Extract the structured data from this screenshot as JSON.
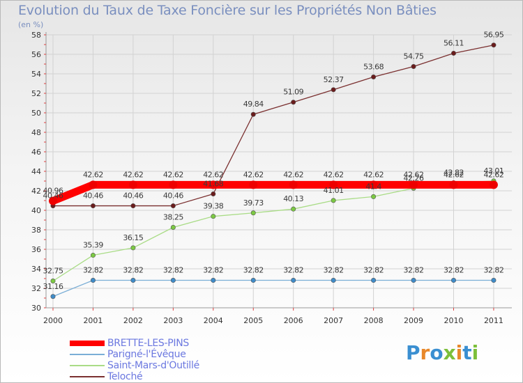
{
  "title": "Evolution du Taux de Taxe Foncière sur les Propriétés Non Bâties",
  "subtitle": "(en %)",
  "logo": {
    "text": "Proxiti",
    "colors": [
      "#3a8fd1",
      "#e8882a",
      "#3a8fd1",
      "#7cbf3a",
      "#e8882a",
      "#3a8fd1",
      "#7cbf3a"
    ]
  },
  "chart_data": {
    "type": "line",
    "title": "Evolution du Taux de Taxe Foncière sur les Propriétés Non Bâties",
    "ylabel": "(en %)",
    "xlabel": "",
    "x": [
      "2000",
      "2001",
      "2002",
      "2003",
      "2004",
      "2005",
      "2006",
      "2007",
      "2008",
      "2009",
      "2010",
      "2011"
    ],
    "ylim": [
      30,
      58
    ],
    "yticks": [
      "30",
      "32",
      "34",
      "36",
      "38",
      "40",
      "42",
      "44",
      "46",
      "48",
      "50",
      "52",
      "54",
      "56",
      "58"
    ],
    "grid": true,
    "legend_position": "bottom-left",
    "series": [
      {
        "name": "Teloché",
        "color": "#7a2f2f",
        "marker": "#6b1c1c",
        "values": [
          40.46,
          40.46,
          40.46,
          40.46,
          41.68,
          49.84,
          51.09,
          52.37,
          53.68,
          54.75,
          56.11,
          56.95
        ],
        "labels": [
          "40.46",
          "40.46",
          "40.46",
          "40.46",
          "41.68",
          "49.84",
          "51.09",
          "52.37",
          "53.68",
          "54.75",
          "56.11",
          "56.95"
        ]
      },
      {
        "name": "Saint-Mars-d'Outillé",
        "color": "#a9dc86",
        "marker": "#7cc943",
        "values": [
          32.75,
          35.39,
          36.15,
          38.25,
          39.38,
          39.73,
          40.13,
          41.01,
          41.4,
          42.26,
          42.82,
          43.01
        ],
        "labels": [
          "32.75",
          "35.39",
          "36.15",
          "38.25",
          "39.38",
          "39.73",
          "40.13",
          "41.01",
          "41.4",
          "42.26",
          "42.82",
          "43.01"
        ]
      },
      {
        "name": "Parigné-l'Évêque",
        "color": "#7aaed6",
        "marker": "#3f8cc9",
        "values": [
          31.16,
          32.82,
          32.82,
          32.82,
          32.82,
          32.82,
          32.82,
          32.82,
          32.82,
          32.82,
          32.82,
          32.82
        ],
        "labels": [
          "31.16",
          "32.82",
          "32.82",
          "32.82",
          "32.82",
          "32.82",
          "32.82",
          "32.82",
          "32.82",
          "32.82",
          "32.82",
          "32.82"
        ]
      },
      {
        "name": "BRETTE-LES-PINS",
        "color": "#ff0000",
        "marker": "#ee0000",
        "thick": true,
        "values": [
          40.96,
          42.62,
          42.62,
          42.62,
          42.62,
          42.62,
          42.62,
          42.62,
          42.62,
          42.62,
          42.62,
          42.62
        ],
        "labels": [
          "40.96",
          "42.62",
          "42.62",
          "42.62",
          "42.62",
          "42.62",
          "42.62",
          "42.62",
          "42.62",
          "42.62",
          "42.62",
          "42.62"
        ]
      }
    ]
  },
  "legend": [
    {
      "label": "BRETTE-LES-PINS",
      "color": "#ff0000",
      "thick": true
    },
    {
      "label": "Parigné-l'Évêque",
      "color": "#7aaed6",
      "thick": false
    },
    {
      "label": "Saint-Mars-d'Outillé",
      "color": "#a9dc86",
      "thick": false
    },
    {
      "label": "Teloché",
      "color": "#7a2f2f",
      "thick": false
    }
  ]
}
